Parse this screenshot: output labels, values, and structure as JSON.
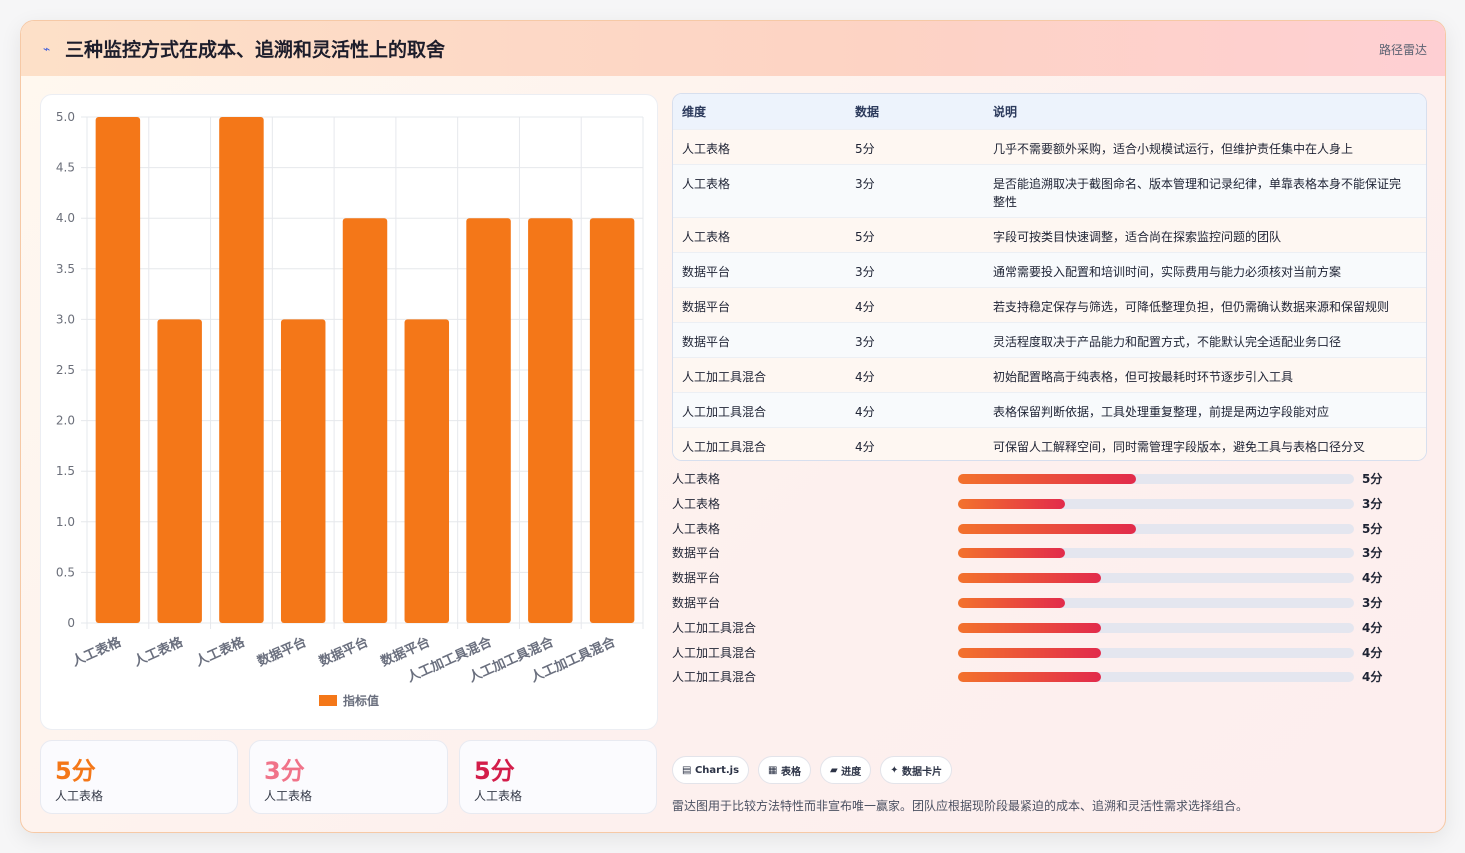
{
  "header": {
    "icon": "sparkle-icon",
    "title": "三种监控方式在成本、追溯和灵活性上的取舍",
    "tag": "路径雷达"
  },
  "colors": {
    "bar": "#f47718",
    "kpi": [
      "#f47718",
      "#f07389",
      "#d31d4a"
    ],
    "progress_start": "#f3722c",
    "progress_end": "#e22b4b"
  },
  "chart_data": {
    "type": "bar",
    "categories": [
      "人工表格",
      "人工表格",
      "人工表格",
      "数据平台",
      "数据平台",
      "数据平台",
      "人工加工具混合",
      "人工加工具混合",
      "人工加工具混合"
    ],
    "series": [
      {
        "name": "指标值",
        "values": [
          5,
          3,
          5,
          3,
          4,
          3,
          4,
          4,
          4
        ]
      }
    ],
    "ylim": [
      0,
      5
    ],
    "yticks": [
      "0",
      "0.5",
      "1.0",
      "1.5",
      "2.0",
      "2.5",
      "3.0",
      "3.5",
      "4.0",
      "4.5",
      "5.0"
    ],
    "legend_position": "bottom",
    "grid": true
  },
  "kpis": [
    {
      "value": "5分",
      "label": "人工表格"
    },
    {
      "value": "3分",
      "label": "人工表格"
    },
    {
      "value": "5分",
      "label": "人工表格"
    }
  ],
  "table": {
    "headers": [
      "维度",
      "数据",
      "说明"
    ],
    "rows": [
      [
        "人工表格",
        "5分",
        "几乎不需要额外采购，适合小规模试运行，但维护责任集中在人身上"
      ],
      [
        "人工表格",
        "3分",
        "是否能追溯取决于截图命名、版本管理和记录纪律，单靠表格本身不能保证完整性"
      ],
      [
        "人工表格",
        "5分",
        "字段可按类目快速调整，适合尚在探索监控问题的团队"
      ],
      [
        "数据平台",
        "3分",
        "通常需要投入配置和培训时间，实际费用与能力必须核对当前方案"
      ],
      [
        "数据平台",
        "4分",
        "若支持稳定保存与筛选，可降低整理负担，但仍需确认数据来源和保留规则"
      ],
      [
        "数据平台",
        "3分",
        "灵活程度取决于产品能力和配置方式，不能默认完全适配业务口径"
      ],
      [
        "人工加工具混合",
        "4分",
        "初始配置略高于纯表格，但可按最耗时环节逐步引入工具"
      ],
      [
        "人工加工具混合",
        "4分",
        "表格保留判断依据，工具处理重复整理，前提是两边字段能对应"
      ],
      [
        "人工加工具混合",
        "4分",
        "可保留人工解释空间，同时需管理字段版本，避免工具与表格口径分叉"
      ]
    ]
  },
  "progress": {
    "max": 5,
    "items": [
      {
        "label": "人工表格",
        "value": 5,
        "text": "5分"
      },
      {
        "label": "人工表格",
        "value": 3,
        "text": "3分"
      },
      {
        "label": "人工表格",
        "value": 5,
        "text": "5分"
      },
      {
        "label": "数据平台",
        "value": 3,
        "text": "3分"
      },
      {
        "label": "数据平台",
        "value": 4,
        "text": "4分"
      },
      {
        "label": "数据平台",
        "value": 3,
        "text": "3分"
      },
      {
        "label": "人工加工具混合",
        "value": 4,
        "text": "4分"
      },
      {
        "label": "人工加工具混合",
        "value": 4,
        "text": "4分"
      },
      {
        "label": "人工加工具混合",
        "value": 4,
        "text": "4分"
      }
    ]
  },
  "chips": [
    {
      "icon": "▤",
      "label": "Chart.js"
    },
    {
      "icon": "▦",
      "label": "表格"
    },
    {
      "icon": "▰",
      "label": "进度"
    },
    {
      "icon": "✦",
      "label": "数据卡片"
    }
  ],
  "footnote": "雷达图用于比较方法特性而非宣布唯一赢家。团队应根据现阶段最紧迫的成本、追溯和灵活性需求选择组合。"
}
